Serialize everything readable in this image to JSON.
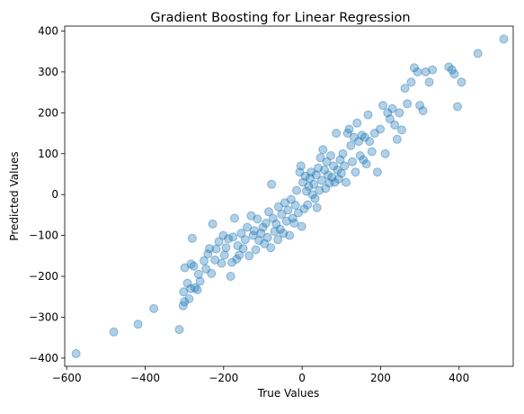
{
  "chart_data": {
    "type": "scatter",
    "title": "Gradient Boosting for Linear Regression",
    "xlabel": "True Values",
    "ylabel": "Predicted Values",
    "xlim": [
      -605,
      538
    ],
    "ylim": [
      -420,
      412
    ],
    "xticks": [
      -600,
      -400,
      -200,
      0,
      200,
      400
    ],
    "yticks": [
      -400,
      -300,
      -200,
      -100,
      0,
      100,
      200,
      300,
      400
    ],
    "grid": false,
    "legend": "none",
    "marker_color": "#1f77b4",
    "marker_alpha": 0.35,
    "points": [
      [
        -576,
        -389
      ],
      [
        -480,
        -336
      ],
      [
        -418,
        -317
      ],
      [
        -378,
        -279
      ],
      [
        -313,
        -330
      ],
      [
        -303,
        -272
      ],
      [
        -302,
        -238
      ],
      [
        -300,
        -262
      ],
      [
        -299,
        -179
      ],
      [
        -292,
        -217
      ],
      [
        -288,
        -255
      ],
      [
        -284,
        -230
      ],
      [
        -283,
        -170
      ],
      [
        -280,
        -107
      ],
      [
        -276,
        -175
      ],
      [
        -273,
        -228
      ],
      [
        -267,
        -233
      ],
      [
        -264,
        -195
      ],
      [
        -260,
        -212
      ],
      [
        -250,
        -162
      ],
      [
        -245,
        -182
      ],
      [
        -240,
        -145
      ],
      [
        -236,
        -132
      ],
      [
        -231,
        -193
      ],
      [
        -228,
        -72
      ],
      [
        -222,
        -160
      ],
      [
        -219,
        -133
      ],
      [
        -212,
        -115
      ],
      [
        -205,
        -168
      ],
      [
        -201,
        -100
      ],
      [
        -198,
        -148
      ],
      [
        -194,
        -130
      ],
      [
        -188,
        -108
      ],
      [
        -182,
        -200
      ],
      [
        -179,
        -166
      ],
      [
        -176,
        -104
      ],
      [
        -172,
        -58
      ],
      [
        -167,
        -158
      ],
      [
        -164,
        -125
      ],
      [
        -160,
        -148
      ],
      [
        -155,
        -95
      ],
      [
        -150,
        -132
      ],
      [
        -145,
        -110
      ],
      [
        -140,
        -80
      ],
      [
        -135,
        -150
      ],
      [
        -130,
        -52
      ],
      [
        -125,
        -100
      ],
      [
        -122,
        -88
      ],
      [
        -118,
        -135
      ],
      [
        -114,
        -60
      ],
      [
        -110,
        -112
      ],
      [
        -105,
        -95
      ],
      [
        -100,
        -80
      ],
      [
        -96,
        -120
      ],
      [
        -92,
        -70
      ],
      [
        -88,
        -105
      ],
      [
        -85,
        -42
      ],
      [
        -80,
        -130
      ],
      [
        -78,
        25
      ],
      [
        -74,
        -58
      ],
      [
        -70,
        -90
      ],
      [
        -66,
        -72
      ],
      [
        -62,
        -110
      ],
      [
        -60,
        -30
      ],
      [
        -56,
        -85
      ],
      [
        -52,
        -48
      ],
      [
        -48,
        -95
      ],
      [
        -44,
        -20
      ],
      [
        -40,
        -65
      ],
      [
        -36,
        -38
      ],
      [
        -32,
        -100
      ],
      [
        -28,
        -12
      ],
      [
        -24,
        -58
      ],
      [
        -20,
        -70
      ],
      [
        -17,
        -26
      ],
      [
        -14,
        10
      ],
      [
        -10,
        -45
      ],
      [
        -6,
        55
      ],
      [
        -3,
        70
      ],
      [
        -1,
        -78
      ],
      [
        2,
        30
      ],
      [
        5,
        -35
      ],
      [
        8,
        45
      ],
      [
        11,
        8
      ],
      [
        14,
        -25
      ],
      [
        17,
        20
      ],
      [
        20,
        40
      ],
      [
        23,
        55
      ],
      [
        26,
        0
      ],
      [
        30,
        25
      ],
      [
        33,
        -10
      ],
      [
        36,
        48
      ],
      [
        38,
        -32
      ],
      [
        41,
        65
      ],
      [
        44,
        10
      ],
      [
        47,
        90
      ],
      [
        50,
        35
      ],
      [
        53,
        110
      ],
      [
        57,
        60
      ],
      [
        60,
        15
      ],
      [
        63,
        80
      ],
      [
        66,
        48
      ],
      [
        70,
        28
      ],
      [
        73,
        95
      ],
      [
        76,
        42
      ],
      [
        80,
        70
      ],
      [
        83,
        30
      ],
      [
        87,
        150
      ],
      [
        90,
        60
      ],
      [
        93,
        38
      ],
      [
        97,
        85
      ],
      [
        100,
        52
      ],
      [
        104,
        100
      ],
      [
        108,
        70
      ],
      [
        112,
        30
      ],
      [
        116,
        150
      ],
      [
        120,
        160
      ],
      [
        124,
        120
      ],
      [
        128,
        80
      ],
      [
        132,
        140
      ],
      [
        136,
        55
      ],
      [
        140,
        175
      ],
      [
        144,
        130
      ],
      [
        148,
        95
      ],
      [
        152,
        145
      ],
      [
        156,
        85
      ],
      [
        160,
        140
      ],
      [
        164,
        75
      ],
      [
        168,
        195
      ],
      [
        172,
        130
      ],
      [
        178,
        105
      ],
      [
        185,
        150
      ],
      [
        192,
        55
      ],
      [
        199,
        160
      ],
      [
        206,
        218
      ],
      [
        212,
        100
      ],
      [
        218,
        200
      ],
      [
        224,
        185
      ],
      [
        230,
        210
      ],
      [
        236,
        170
      ],
      [
        242,
        135
      ],
      [
        248,
        200
      ],
      [
        254,
        158
      ],
      [
        262,
        260
      ],
      [
        268,
        222
      ],
      [
        278,
        275
      ],
      [
        286,
        310
      ],
      [
        294,
        300
      ],
      [
        300,
        218
      ],
      [
        308,
        205
      ],
      [
        315,
        300
      ],
      [
        324,
        275
      ],
      [
        332,
        305
      ],
      [
        374,
        312
      ],
      [
        382,
        305
      ],
      [
        388,
        295
      ],
      [
        396,
        215
      ],
      [
        406,
        275
      ],
      [
        448,
        345
      ],
      [
        514,
        380
      ]
    ]
  }
}
